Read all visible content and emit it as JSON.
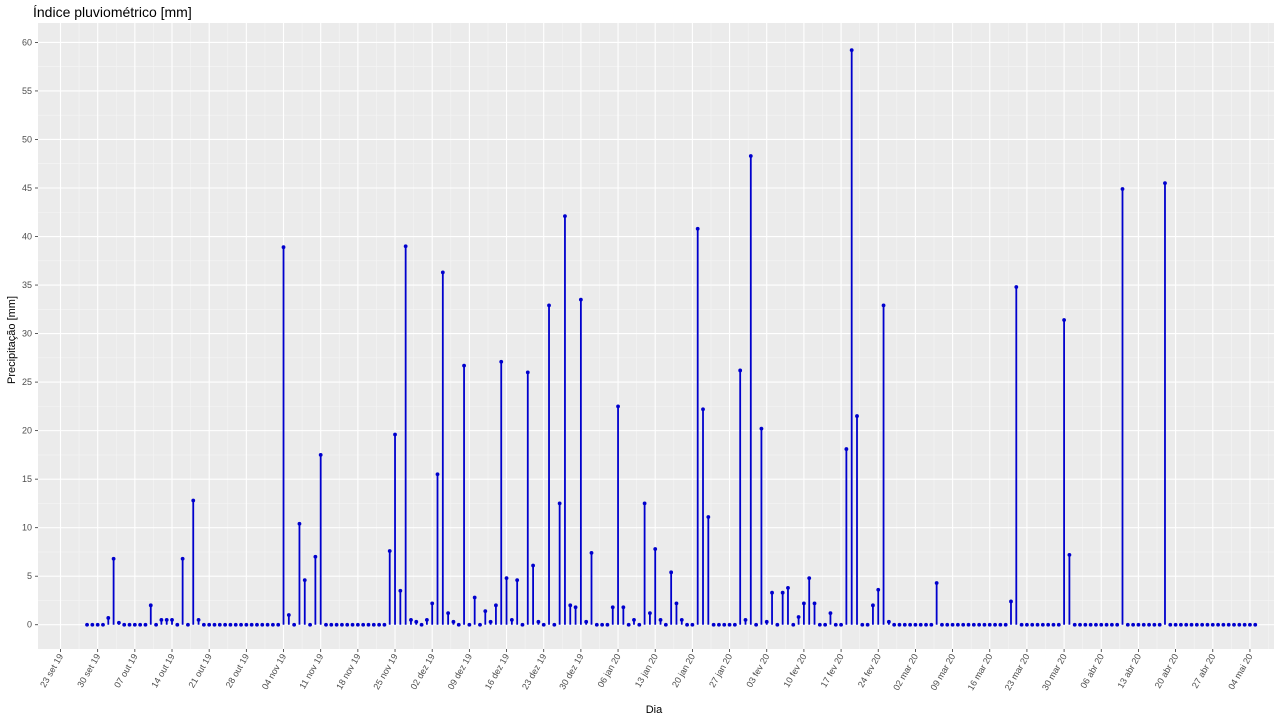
{
  "chart_data": {
    "type": "lollipop",
    "title": "Índice pluviométrico [mm]",
    "xlabel": "Dia",
    "ylabel": "Precipitação [mm]",
    "ylim": [
      -2.5,
      62
    ],
    "y_ticks": [
      0,
      5,
      10,
      15,
      20,
      25,
      30,
      35,
      40,
      45,
      50,
      55,
      60
    ],
    "x_ticks": [
      "23 set 19",
      "30 set 19",
      "07 out 19",
      "14 out 19",
      "21 out 19",
      "28 out 19",
      "04 nov 19",
      "11 nov 19",
      "18 nov 19",
      "25 nov 19",
      "02 dez 19",
      "09 dez 19",
      "16 dez 19",
      "23 dez 19",
      "30 dez 19",
      "06 jan 20",
      "13 jan 20",
      "20 jan 20",
      "27 jan 20",
      "03 fev 20",
      "10 fev 20",
      "17 fev 20",
      "24 fev 20",
      "02 mar 20",
      "09 mar 20",
      "16 mar 20",
      "23 mar 20",
      "30 mar 20",
      "06 abr 20",
      "13 abr 20",
      "20 abr 20",
      "27 abr 20",
      "04 mai 20"
    ],
    "x_start": "2019-09-28",
    "values": [
      0,
      0,
      0,
      0,
      0.7,
      6.8,
      0.2,
      0,
      0,
      0,
      0,
      0,
      2,
      0,
      0.5,
      0.5,
      0.5,
      0,
      6.8,
      0,
      12.8,
      0.5,
      0,
      0,
      0,
      0,
      0,
      0,
      0,
      0,
      0,
      0,
      0,
      0,
      0,
      0,
      0,
      38.9,
      1,
      0,
      10.4,
      4.6,
      0,
      7,
      17.5,
      0,
      0,
      0,
      0,
      0,
      0,
      0,
      0,
      0,
      0,
      0,
      0,
      7.6,
      19.6,
      3.5,
      39,
      0.5,
      0.3,
      0,
      0.5,
      2.2,
      15.5,
      36.3,
      1.2,
      0.3,
      0,
      26.7,
      0,
      2.8,
      0,
      1.4,
      0.3,
      2,
      27.1,
      4.8,
      0.5,
      4.6,
      0,
      26,
      6.1,
      0.3,
      0,
      32.9,
      0,
      12.5,
      42.1,
      2,
      1.8,
      33.5,
      0.3,
      7.4,
      0,
      0,
      0,
      1.8,
      22.5,
      1.8,
      0,
      0.5,
      0,
      12.5,
      1.2,
      7.8,
      0.5,
      0,
      5.4,
      2.2,
      0.5,
      0,
      0,
      40.8,
      22.2,
      11.1,
      0,
      0,
      0,
      0,
      0,
      26.2,
      0.5,
      48.3,
      0,
      20.2,
      0.3,
      3.3,
      0,
      3.3,
      3.8,
      0,
      0.8,
      2.2,
      4.8,
      2.2,
      0,
      0,
      1.2,
      0,
      0,
      18.1,
      59.2,
      21.5,
      0,
      0,
      2,
      3.6,
      32.9,
      0.3,
      0,
      0,
      0,
      0,
      0,
      0,
      0,
      0,
      4.3,
      0,
      0,
      0,
      0,
      0,
      0,
      0,
      0,
      0,
      0,
      0,
      0,
      0,
      2.4,
      34.8,
      0,
      0,
      0,
      0,
      0,
      0,
      0,
      0,
      31.4,
      7.2,
      0,
      0,
      0,
      0,
      0,
      0,
      0,
      0,
      0,
      44.9,
      0,
      0,
      0,
      0,
      0,
      0,
      0,
      45.5,
      0,
      0,
      0,
      0,
      0,
      0,
      0,
      0,
      0,
      0,
      0,
      0,
      0,
      0,
      0,
      0,
      0
    ]
  }
}
